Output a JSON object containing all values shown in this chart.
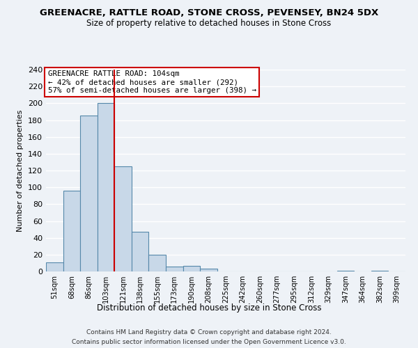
{
  "title": "GREENACRE, RATTLE ROAD, STONE CROSS, PEVENSEY, BN24 5DX",
  "subtitle": "Size of property relative to detached houses in Stone Cross",
  "xlabel": "Distribution of detached houses by size in Stone Cross",
  "ylabel": "Number of detached properties",
  "bin_labels": [
    "51sqm",
    "68sqm",
    "86sqm",
    "103sqm",
    "121sqm",
    "138sqm",
    "155sqm",
    "173sqm",
    "190sqm",
    "208sqm",
    "225sqm",
    "242sqm",
    "260sqm",
    "277sqm",
    "295sqm",
    "312sqm",
    "329sqm",
    "347sqm",
    "364sqm",
    "382sqm",
    "399sqm"
  ],
  "bar_heights": [
    11,
    96,
    185,
    200,
    125,
    47,
    20,
    6,
    7,
    3,
    0,
    0,
    0,
    0,
    0,
    0,
    0,
    1,
    0,
    1,
    0
  ],
  "bar_color": "#c8d8e8",
  "bar_edge_color": "#5588aa",
  "vline_x_index": 3,
  "vline_color": "#cc0000",
  "ylim": [
    0,
    240
  ],
  "yticks": [
    0,
    20,
    40,
    60,
    80,
    100,
    120,
    140,
    160,
    180,
    200,
    220,
    240
  ],
  "annotation_title": "GREENACRE RATTLE ROAD: 104sqm",
  "annotation_line1": "← 42% of detached houses are smaller (292)",
  "annotation_line2": "57% of semi-detached houses are larger (398) →",
  "annotation_box_color": "#ffffff",
  "annotation_box_edge": "#cc0000",
  "footer_line1": "Contains HM Land Registry data © Crown copyright and database right 2024.",
  "footer_line2": "Contains public sector information licensed under the Open Government Licence v3.0.",
  "background_color": "#eef2f7",
  "grid_color": "#ffffff"
}
